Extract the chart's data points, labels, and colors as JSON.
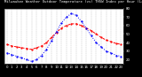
{
  "title": "Milwaukee Weather Outdoor Temperature (vs) THSW Index per Hour (Last 24 Hours)",
  "background_color": "#000000",
  "plot_bg_color": "#ffffff",
  "hours": [
    0,
    1,
    2,
    3,
    4,
    5,
    6,
    7,
    8,
    9,
    10,
    11,
    12,
    13,
    14,
    15,
    16,
    17,
    18,
    19,
    20,
    21,
    22,
    23
  ],
  "temp_f": [
    38,
    36,
    35,
    34,
    33,
    32,
    34,
    36,
    40,
    46,
    52,
    57,
    60,
    62,
    62,
    60,
    57,
    54,
    50,
    46,
    43,
    41,
    39,
    38
  ],
  "thsw_f": [
    28,
    26,
    24,
    22,
    20,
    18,
    20,
    25,
    32,
    42,
    53,
    63,
    70,
    74,
    72,
    65,
    57,
    48,
    40,
    35,
    30,
    28,
    25,
    24
  ],
  "temp_color": "#ff0000",
  "thsw_color": "#0000ff",
  "ylim_min": 15,
  "ylim_max": 80,
  "ytick_values": [
    20,
    30,
    40,
    50,
    60,
    70,
    80
  ],
  "ytick_labels": [
    "20",
    "30",
    "40",
    "50",
    "60",
    "70",
    "80"
  ],
  "xlabel_fontsize": 2.8,
  "ylabel_fontsize": 2.8,
  "title_fontsize": 2.8,
  "line_width": 0.7,
  "marker_size": 1.2,
  "grid_color": "#888888",
  "grid_alpha": 0.6,
  "grid_lw": 0.3
}
